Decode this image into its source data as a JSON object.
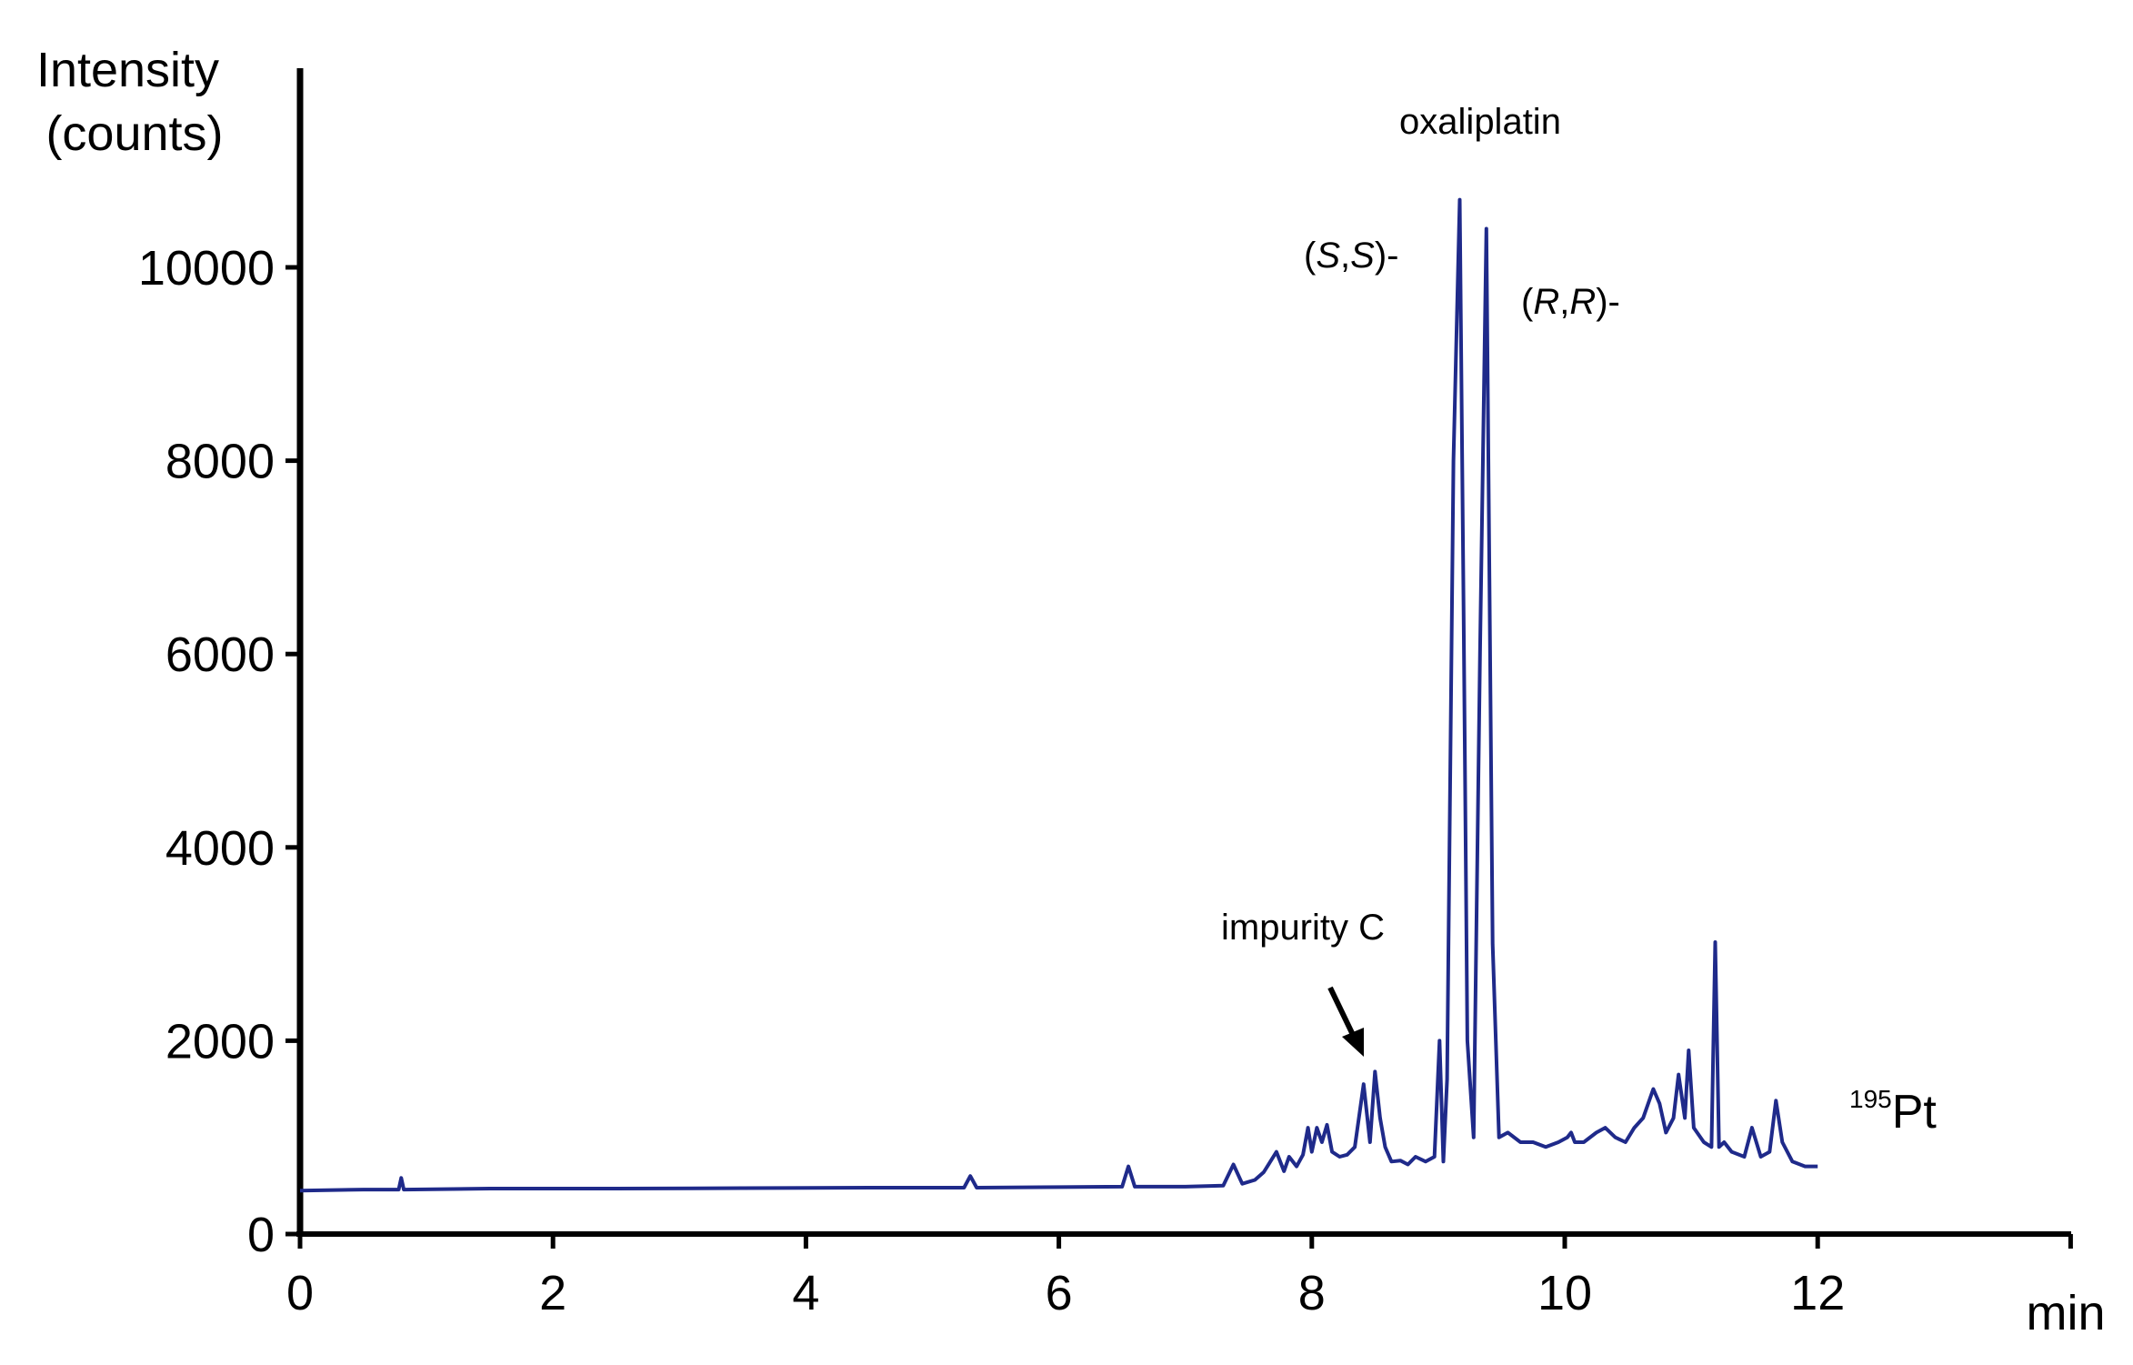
{
  "chart_data": {
    "type": "line",
    "ylabel_lines": [
      "Intensity",
      "(counts)"
    ],
    "xlabel": "min",
    "xlim": [
      0,
      14
    ],
    "ylim": [
      0,
      12000
    ],
    "xticks": [
      "0",
      "2",
      "4",
      "6",
      "8",
      "10",
      "12"
    ],
    "xtick_values": [
      0,
      2,
      4,
      6,
      8,
      10,
      12
    ],
    "yticks": [
      "0",
      "2000",
      "4000",
      "6000",
      "8000",
      "10000"
    ],
    "ytick_values": [
      0,
      2000,
      4000,
      6000,
      8000,
      10000
    ],
    "grid": false,
    "series": [
      {
        "color": "#1f2a8a",
        "x": [
          0,
          0.5,
          0.78,
          0.8,
          0.82,
          1.5,
          2.5,
          3.5,
          4.5,
          5.25,
          5.3,
          5.35,
          6.0,
          6.5,
          6.55,
          6.6,
          7.0,
          7.3,
          7.38,
          7.45,
          7.55,
          7.62,
          7.72,
          7.78,
          7.82,
          7.88,
          7.93,
          7.97,
          8.0,
          8.04,
          8.08,
          8.12,
          8.16,
          8.22,
          8.28,
          8.34,
          8.41,
          8.46,
          8.5,
          8.54,
          8.58,
          8.63,
          8.7,
          8.76,
          8.82,
          8.9,
          8.97,
          9.01,
          9.04,
          9.07,
          9.12,
          9.17,
          9.2,
          9.23,
          9.28,
          9.33,
          9.38,
          9.43,
          9.48,
          9.55,
          9.65,
          9.75,
          9.85,
          9.95,
          10.02,
          10.05,
          10.08,
          10.15,
          10.25,
          10.32,
          10.4,
          10.48,
          10.55,
          10.62,
          10.7,
          10.75,
          10.8,
          10.86,
          10.9,
          10.95,
          10.98,
          11.02,
          11.1,
          11.16,
          11.19,
          11.22,
          11.26,
          11.32,
          11.42,
          11.48,
          11.55,
          11.62,
          11.67,
          11.72,
          11.8,
          11.9,
          12.0
        ],
        "y": [
          450,
          460,
          460,
          580,
          460,
          470,
          470,
          475,
          480,
          480,
          600,
          480,
          485,
          490,
          700,
          490,
          490,
          500,
          720,
          520,
          560,
          640,
          850,
          650,
          800,
          700,
          820,
          1100,
          850,
          1100,
          950,
          1130,
          850,
          800,
          820,
          900,
          1550,
          950,
          1680,
          1200,
          900,
          750,
          760,
          720,
          800,
          750,
          800,
          2000,
          750,
          1600,
          8000,
          10700,
          6500,
          2000,
          1000,
          6000,
          10400,
          3000,
          1000,
          1050,
          950,
          950,
          900,
          950,
          1000,
          1050,
          950,
          950,
          1050,
          1100,
          1000,
          950,
          1100,
          1200,
          1500,
          1350,
          1050,
          1200,
          1650,
          1200,
          1900,
          1100,
          950,
          900,
          3020,
          900,
          950,
          850,
          800,
          1100,
          800,
          850,
          1380,
          950,
          750,
          700,
          700
        ]
      }
    ],
    "annotations": [
      {
        "text": "oxaliplatin"
      },
      {
        "text": "impurity C"
      }
    ],
    "stereo_labels": {
      "ss": {
        "open": "(",
        "a": "S",
        "comma": ",",
        "b": "S",
        "close": ")-"
      },
      "rr": {
        "open": "(",
        "a": "R",
        "comma": ",",
        "b": "R",
        "close": ")-"
      }
    },
    "isotope_label": {
      "mass": "195",
      "element": "Pt"
    }
  }
}
